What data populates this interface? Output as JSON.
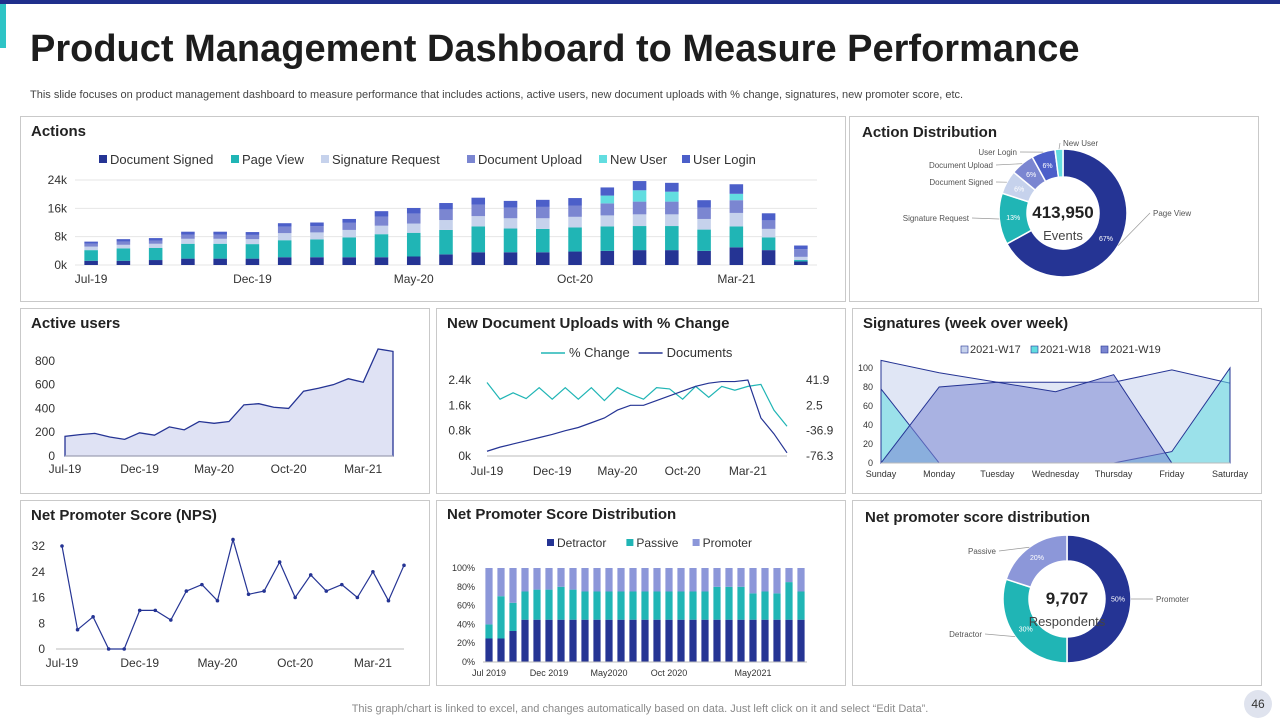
{
  "header": {
    "title": "Product Management Dashboard to Measure Performance",
    "subtitle": "This slide focuses on product management dashboard to measure performance that includes actions, active users, new document uploads with % change, signatures, new promoter score, etc."
  },
  "footer": {
    "note": "This graph/chart is linked to excel,  and changes automatically based on data. Just left click on it and select “Edit Data”.",
    "page": "46"
  },
  "colors": {
    "navy": "#253494",
    "teal": "#20b5b5",
    "light_blue": "#c6d2ec",
    "periwinkle": "#7b86d1",
    "cyan": "#62dde0",
    "blue": "#4c5fc9"
  },
  "chart_data": [
    {
      "id": "actions",
      "type": "bar",
      "stacked": true,
      "title": "Actions",
      "categories": [
        "Jul-19",
        "Aug-19",
        "Sep-19",
        "Oct-19",
        "Nov-19",
        "Dec-19",
        "Jan-20",
        "Feb-20",
        "Mar-20",
        "Apr-20",
        "May-20",
        "Jun-20",
        "Jul-20",
        "Aug-20",
        "Sep-20",
        "Oct-20",
        "Nov-20",
        "Dec-20",
        "Jan-21",
        "Feb-21",
        "Mar-21",
        "Apr-21",
        "May-21"
      ],
      "tick_labels": [
        "Jul-19",
        "Dec-19",
        "May-20",
        "Oct-20",
        "Mar-21"
      ],
      "tick_indices": [
        0,
        5,
        10,
        15,
        20
      ],
      "series": [
        {
          "name": "Document Signed",
          "color": "#253494",
          "values": [
            1200,
            1200,
            1400,
            1800,
            1800,
            1800,
            2200,
            2200,
            2200,
            2200,
            2400,
            3000,
            3600,
            3600,
            3600,
            3800,
            4000,
            4200,
            4200,
            4000,
            5000,
            4200,
            1000
          ]
        },
        {
          "name": "Page View",
          "color": "#20b5b5",
          "values": [
            3000,
            3500,
            3400,
            4200,
            4200,
            4100,
            4800,
            5000,
            5600,
            6500,
            6700,
            6900,
            7300,
            6700,
            6600,
            6800,
            6900,
            6800,
            6800,
            6000,
            5900,
            3600,
            400
          ]
        },
        {
          "name": "Signature Request",
          "color": "#c6d2ec",
          "values": [
            1000,
            1000,
            1200,
            1400,
            1400,
            1400,
            2000,
            2000,
            2100,
            2400,
            2600,
            2800,
            2900,
            2900,
            3000,
            3000,
            3100,
            3300,
            3300,
            3000,
            3800,
            2400,
            900
          ]
        },
        {
          "name": "Document Upload",
          "color": "#7b86d1",
          "values": [
            800,
            900,
            900,
            1200,
            1200,
            1200,
            1800,
            1800,
            2000,
            2600,
            2800,
            3000,
            3200,
            3000,
            3200,
            3200,
            3400,
            3600,
            3600,
            3200,
            3600,
            2400,
            2200
          ]
        },
        {
          "name": "New User",
          "color": "#62dde0",
          "values": [
            0,
            0,
            0,
            0,
            0,
            0,
            0,
            0,
            0,
            0,
            0,
            0,
            0,
            0,
            0,
            0,
            2200,
            3200,
            2800,
            0,
            1800,
            0,
            0
          ]
        },
        {
          "name": "User Login",
          "color": "#4c5fc9",
          "values": [
            600,
            700,
            700,
            800,
            800,
            800,
            1000,
            1000,
            1100,
            1500,
            1600,
            1800,
            2000,
            1900,
            2000,
            2100,
            2300,
            2600,
            2500,
            2100,
            2700,
            2000,
            1000
          ]
        }
      ],
      "ylim": [
        0,
        24000
      ],
      "y_ticks": [
        "0k",
        "8k",
        "16k",
        "24k"
      ]
    },
    {
      "id": "action_distribution",
      "type": "pie",
      "title": "Action Distribution",
      "center_value": "413,950",
      "center_label": "Events",
      "slices": [
        {
          "name": "Page View",
          "value": 67,
          "label": "67%",
          "color": "#253494"
        },
        {
          "name": "Signature Request",
          "value": 13,
          "label": "13%",
          "color": "#20b5b5"
        },
        {
          "name": "Document Signed",
          "value": 6,
          "label": "6%",
          "color": "#c6d2ec"
        },
        {
          "name": "Document Upload",
          "value": 6,
          "label": "6%",
          "color": "#7b86d1"
        },
        {
          "name": "User Login",
          "value": 6,
          "label": "6%",
          "color": "#4c5fc9"
        },
        {
          "name": "New User",
          "value": 2,
          "label": "",
          "color": "#62dde0"
        }
      ]
    },
    {
      "id": "active_users",
      "type": "area",
      "title": "Active users",
      "values": [
        165,
        180,
        190,
        160,
        140,
        195,
        175,
        245,
        220,
        290,
        275,
        290,
        430,
        440,
        410,
        400,
        545,
        570,
        600,
        650,
        620,
        900,
        880
      ],
      "tick_labels": [
        "Jul-19",
        "Dec-19",
        "May-20",
        "Oct-20",
        "Mar-21"
      ],
      "tick_indices": [
        0,
        5,
        10,
        15,
        20
      ],
      "ylim": [
        0,
        900
      ],
      "y_ticks": [
        "0",
        "200",
        "400",
        "600",
        "800"
      ],
      "y_tick_values": [
        0,
        200,
        400,
        600,
        800
      ]
    },
    {
      "id": "new_document_uploads",
      "type": "line",
      "title": "New Document Uploads with % Change",
      "series": [
        {
          "name": "% Change",
          "color": "#20b5b5",
          "axis": "right",
          "values": [
            38,
            12,
            22,
            13,
            30,
            12,
            30,
            12,
            30,
            10,
            30,
            20,
            12,
            30,
            28,
            12,
            32,
            15,
            32,
            26,
            32,
            35,
            -5,
            -30
          ]
        },
        {
          "name": "Documents",
          "color": "#253494",
          "axis": "left",
          "values": [
            150,
            280,
            380,
            480,
            580,
            680,
            800,
            900,
            1050,
            1200,
            1450,
            1600,
            1600,
            1750,
            1900,
            2050,
            2200,
            2300,
            2350,
            2350,
            2400,
            1200,
            700,
            100
          ]
        }
      ],
      "left_ticks": [
        "0k",
        "0.8k",
        "1.6k",
        "2.4k"
      ],
      "right_ticks": [
        "-76.3",
        "-36.9",
        "2.5",
        "41.9"
      ],
      "tick_labels": [
        "Jul-19",
        "Dec-19",
        "May-20",
        "Oct-20",
        "Mar-21"
      ],
      "tick_indices": [
        0,
        5,
        10,
        15,
        20
      ],
      "ylim_left": [
        0,
        2400
      ],
      "ylim_right": [
        -76.3,
        41.9
      ]
    },
    {
      "id": "signatures_week",
      "type": "area",
      "title": "Signatures (week over week)",
      "categories": [
        "Sunday",
        "Monday",
        "Tuesday",
        "Wednesday",
        "Thursday",
        "Friday",
        "Saturday"
      ],
      "series": [
        {
          "name": "2021-W17",
          "color": "#c6d2ec",
          "values": [
            108,
            95,
            85,
            85,
            85,
            98,
            84
          ]
        },
        {
          "name": "2021-W18",
          "color": "#62dde0",
          "values": [
            78,
            0,
            0,
            0,
            0,
            12,
            100
          ]
        },
        {
          "name": "2021-W19",
          "color": "#7b86d1",
          "values": [
            0,
            80,
            85,
            75,
            93,
            0,
            0
          ]
        }
      ],
      "ylim": [
        0,
        100
      ],
      "y_ticks": [
        "0",
        "20",
        "40",
        "60",
        "80",
        "100"
      ]
    },
    {
      "id": "nps",
      "type": "line",
      "title": "Net Promoter Score (NPS)",
      "values": [
        32,
        6,
        10,
        0,
        0,
        12,
        12,
        9,
        18,
        20,
        15,
        34,
        17,
        18,
        27,
        16,
        23,
        18,
        20,
        16,
        24,
        15,
        26
      ],
      "tick_labels": [
        "Jul-19",
        "Dec-19",
        "May-20",
        "Oct-20",
        "Mar-21"
      ],
      "tick_indices": [
        0,
        5,
        10,
        15,
        20
      ],
      "ylim": [
        0,
        32
      ],
      "y_ticks": [
        "0",
        "8",
        "16",
        "24",
        "32"
      ]
    },
    {
      "id": "nps_distribution_bar",
      "type": "bar",
      "stacked": true,
      "percent": true,
      "title": "Net Promoter Score Distribution",
      "series": [
        {
          "name": "Detractor",
          "color": "#253494",
          "values": [
            25,
            25,
            33,
            45,
            45,
            45,
            45,
            45,
            45,
            45,
            45,
            45,
            45,
            45,
            45,
            45,
            45,
            45,
            45,
            45,
            45,
            45,
            45,
            45,
            45,
            45,
            45
          ]
        },
        {
          "name": "Passive",
          "color": "#20b5b5",
          "values": [
            15,
            45,
            30,
            30,
            32,
            32,
            35,
            32,
            30,
            30,
            30,
            30,
            30,
            30,
            30,
            30,
            30,
            30,
            30,
            35,
            35,
            35,
            28,
            30,
            28,
            40,
            30
          ]
        },
        {
          "name": "Promoter",
          "color": "#8c97d9",
          "values": [
            60,
            30,
            37,
            25,
            23,
            23,
            20,
            23,
            25,
            25,
            25,
            25,
            25,
            25,
            25,
            25,
            25,
            25,
            25,
            20,
            20,
            20,
            27,
            25,
            27,
            15,
            25
          ]
        }
      ],
      "tick_labels": [
        "Jul 2019",
        "Dec 2019",
        "May2020",
        "Oct 2020",
        "May2021"
      ],
      "tick_indices": [
        0,
        5,
        10,
        15,
        22
      ],
      "y_ticks": [
        "0%",
        "20%",
        "40%",
        "60%",
        "80%",
        "100%"
      ]
    },
    {
      "id": "nps_distribution_donut",
      "type": "pie",
      "title": "Net promoter score distribution",
      "center_value": "9,707",
      "center_label": "Respondents",
      "slices": [
        {
          "name": "Promoter",
          "value": 50,
          "label": "50%",
          "color": "#253494"
        },
        {
          "name": "Detractor",
          "value": 30,
          "label": "30%",
          "color": "#20b5b5"
        },
        {
          "name": "Passive",
          "value": 20,
          "label": "20%",
          "color": "#8c97d9"
        }
      ]
    }
  ]
}
